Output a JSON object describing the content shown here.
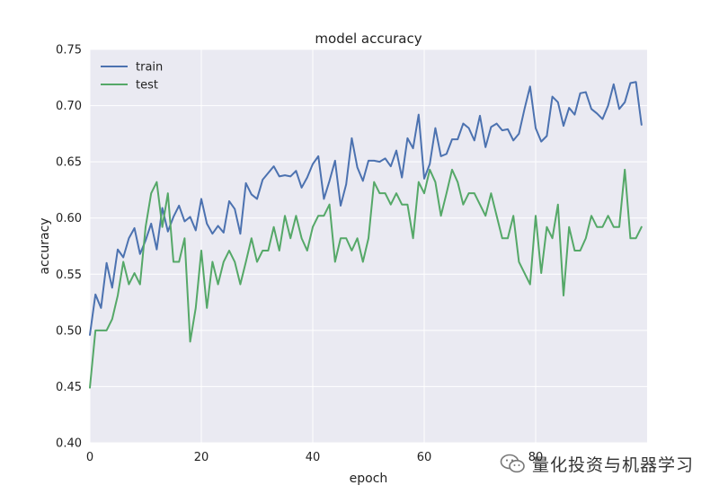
{
  "chart_data": {
    "type": "line",
    "title": "model accuracy",
    "xlabel": "epoch",
    "ylabel": "accuracy",
    "xlim": [
      0,
      100
    ],
    "ylim": [
      0.4,
      0.75
    ],
    "xticks": [
      0,
      20,
      40,
      60,
      80
    ],
    "yticks": [
      0.4,
      0.45,
      0.5,
      0.55,
      0.6,
      0.65,
      0.7,
      0.75
    ],
    "grid": true,
    "legend_position": "top-left",
    "series": [
      {
        "name": "train",
        "color": "#4c72b0",
        "values": [
          0.496,
          0.532,
          0.52,
          0.56,
          0.538,
          0.572,
          0.565,
          0.582,
          0.591,
          0.568,
          0.58,
          0.595,
          0.572,
          0.609,
          0.588,
          0.601,
          0.611,
          0.597,
          0.601,
          0.589,
          0.617,
          0.595,
          0.586,
          0.593,
          0.587,
          0.615,
          0.608,
          0.586,
          0.631,
          0.621,
          0.617,
          0.634,
          0.64,
          0.646,
          0.637,
          0.638,
          0.637,
          0.642,
          0.627,
          0.636,
          0.648,
          0.655,
          0.617,
          0.633,
          0.651,
          0.611,
          0.63,
          0.671,
          0.645,
          0.633,
          0.651,
          0.651,
          0.65,
          0.653,
          0.646,
          0.66,
          0.636,
          0.671,
          0.662,
          0.692,
          0.635,
          0.648,
          0.68,
          0.655,
          0.657,
          0.67,
          0.67,
          0.684,
          0.68,
          0.669,
          0.691,
          0.663,
          0.681,
          0.684,
          0.678,
          0.679,
          0.669,
          0.675,
          0.697,
          0.717,
          0.68,
          0.668,
          0.673,
          0.708,
          0.703,
          0.682,
          0.698,
          0.692,
          0.711,
          0.712,
          0.697,
          0.693,
          0.688,
          0.7,
          0.719,
          0.697,
          0.703,
          0.72,
          0.721,
          0.683
        ]
      },
      {
        "name": "test",
        "color": "#55a868",
        "values": [
          0.449,
          0.5,
          0.5,
          0.5,
          0.51,
          0.531,
          0.561,
          0.541,
          0.551,
          0.541,
          0.592,
          0.622,
          0.632,
          0.592,
          0.622,
          0.561,
          0.561,
          0.582,
          0.49,
          0.52,
          0.571,
          0.52,
          0.561,
          0.541,
          0.561,
          0.571,
          0.561,
          0.541,
          0.561,
          0.582,
          0.561,
          0.571,
          0.571,
          0.592,
          0.571,
          0.602,
          0.582,
          0.602,
          0.582,
          0.571,
          0.592,
          0.602,
          0.602,
          0.612,
          0.561,
          0.582,
          0.582,
          0.571,
          0.582,
          0.561,
          0.582,
          0.632,
          0.622,
          0.622,
          0.612,
          0.622,
          0.612,
          0.612,
          0.582,
          0.632,
          0.622,
          0.643,
          0.632,
          0.602,
          0.622,
          0.643,
          0.632,
          0.612,
          0.622,
          0.622,
          0.612,
          0.602,
          0.622,
          0.602,
          0.582,
          0.582,
          0.602,
          0.561,
          0.551,
          0.541,
          0.602,
          0.551,
          0.592,
          0.582,
          0.612,
          0.531,
          0.592,
          0.571,
          0.571,
          0.582,
          0.602,
          0.592,
          0.592,
          0.602,
          0.592,
          0.592,
          0.643,
          0.582,
          0.582,
          0.592
        ]
      }
    ]
  },
  "watermark": {
    "text": "量化投资与机器学习",
    "icon": "wechat-icon"
  }
}
